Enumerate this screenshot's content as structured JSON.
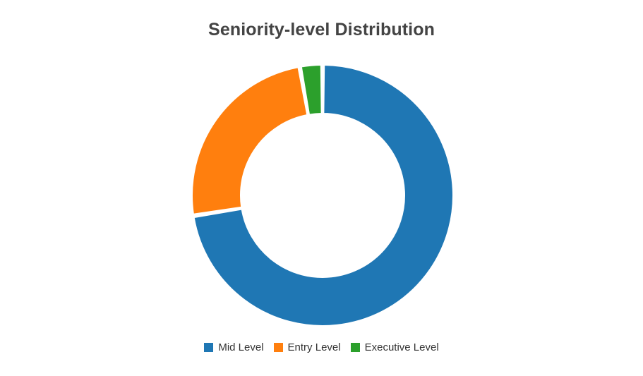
{
  "chart_data": {
    "type": "pie",
    "style": "donut",
    "title": "Seniority-level Distribution",
    "series": [
      {
        "name": "Mid Level",
        "value": 72.5,
        "color": "#1f77b4"
      },
      {
        "name": "Entry Level",
        "value": 24.7,
        "color": "#ff7f0e"
      },
      {
        "name": "Executive Level",
        "value": 2.8,
        "color": "#2ca02c"
      }
    ],
    "legend_position": "bottom"
  }
}
